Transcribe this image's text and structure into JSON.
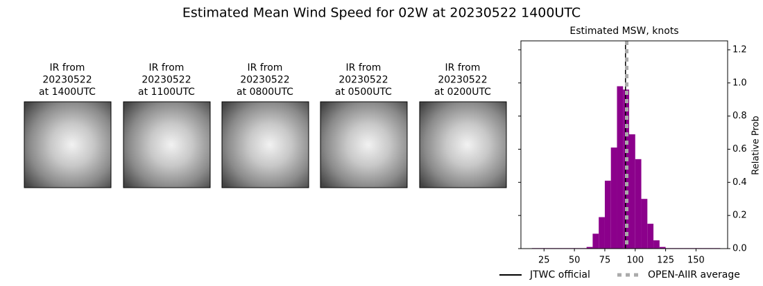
{
  "title": "Estimated Mean Wind Speed for 02W at 20230522 1400UTC",
  "panels": [
    {
      "lines": [
        "IR from",
        "20230522",
        "at 1400UTC"
      ]
    },
    {
      "lines": [
        "IR from",
        "20230522",
        "at 1100UTC"
      ]
    },
    {
      "lines": [
        "IR from",
        "20230522",
        "at 0800UTC"
      ]
    },
    {
      "lines": [
        "IR from",
        "20230522",
        "at 0500UTC"
      ]
    },
    {
      "lines": [
        "IR from",
        "20230522",
        "at 0200UTC"
      ]
    }
  ],
  "chart_data": {
    "type": "histogram",
    "title": "Estimated MSW, knots",
    "bins": [
      15,
      20,
      25,
      30,
      35,
      40,
      45,
      50,
      55,
      60,
      65,
      70,
      75,
      80,
      85,
      90,
      95,
      100,
      105,
      110,
      115,
      120,
      125,
      130,
      135,
      140,
      145,
      150,
      155,
      160,
      165,
      170
    ],
    "values": [
      0.003,
      0.003,
      0.003,
      0.003,
      0.003,
      0.003,
      0.003,
      0.003,
      0.003,
      0.01,
      0.09,
      0.19,
      0.41,
      0.61,
      0.98,
      0.96,
      0.69,
      0.54,
      0.3,
      0.15,
      0.05,
      0.01,
      0.003,
      0.003,
      0.003,
      0.003,
      0.003,
      0.003,
      0.003,
      0.003,
      0.003
    ],
    "color": "#8b008b",
    "xlim": [
      6,
      176
    ],
    "ylim": [
      0,
      1.254
    ],
    "xticks": [
      25,
      50,
      75,
      100,
      125,
      150
    ],
    "yticks": [
      0.0,
      0.2,
      0.4,
      0.6,
      0.8,
      1.0,
      1.2
    ],
    "y_label": "Relative Prob",
    "lines": [
      {
        "name": "JTWC official",
        "value": 92,
        "color": "#000000",
        "dashed": false
      },
      {
        "name": "OPEN-AIIR average",
        "value": 93,
        "color": "#aaaaaa",
        "dashed": true
      }
    ]
  }
}
